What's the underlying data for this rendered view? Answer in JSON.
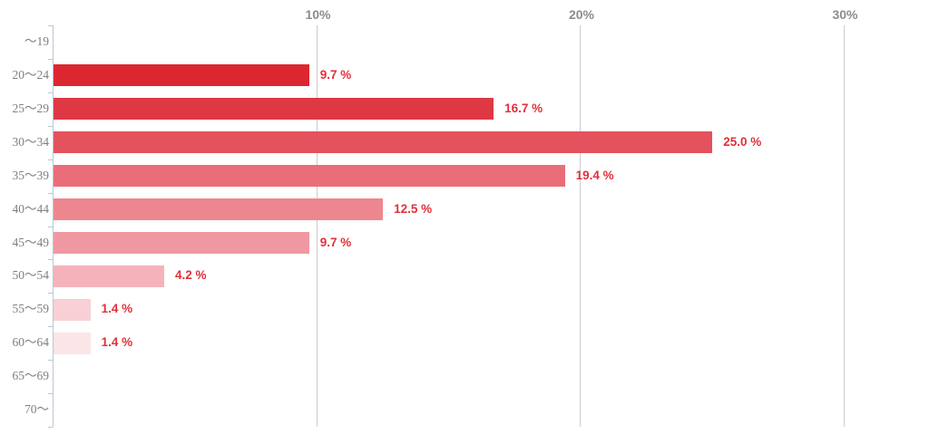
{
  "chart_data": {
    "type": "bar",
    "orientation": "horizontal",
    "title": "",
    "unit": "%",
    "grid": "vertical-gridlines-only",
    "x_axis": {
      "position": "top",
      "min": 0,
      "max": 32.8,
      "ticks": [
        {
          "label": "10%",
          "value": 10
        },
        {
          "label": "20%",
          "value": 20
        },
        {
          "label": "30%",
          "value": 30
        }
      ]
    },
    "categories": [
      "〜19",
      "20〜24",
      "25〜29",
      "30〜34",
      "35〜39",
      "40〜44",
      "45〜49",
      "50〜54",
      "55〜59",
      "60〜64",
      "65〜69",
      "70〜"
    ],
    "values": [
      0,
      9.7,
      16.7,
      25.0,
      19.4,
      12.5,
      9.7,
      4.2,
      1.4,
      1.4,
      0,
      0
    ],
    "value_labels": [
      "",
      "9.7 %",
      "16.7 %",
      "25.0 %",
      "19.4 %",
      "12.5 %",
      "9.7 %",
      "4.2 %",
      "1.4 %",
      "1.4 %",
      "",
      ""
    ],
    "bar_colors": [
      "",
      "#dc2731",
      "#de3845",
      "#e4525e",
      "#ea6e79",
      "#ee8690",
      "#f098a1",
      "#f4b3ba",
      "#f8d0d6",
      "#fce5e7",
      "",
      ""
    ]
  },
  "colors": {
    "background": "#ffffff",
    "axis_line": "#b9c7d6",
    "gridline": "#cccccc",
    "category_label": "#7f7f7f",
    "x_tick_label": "#8c8c8c",
    "value_label": "#e2303a"
  }
}
